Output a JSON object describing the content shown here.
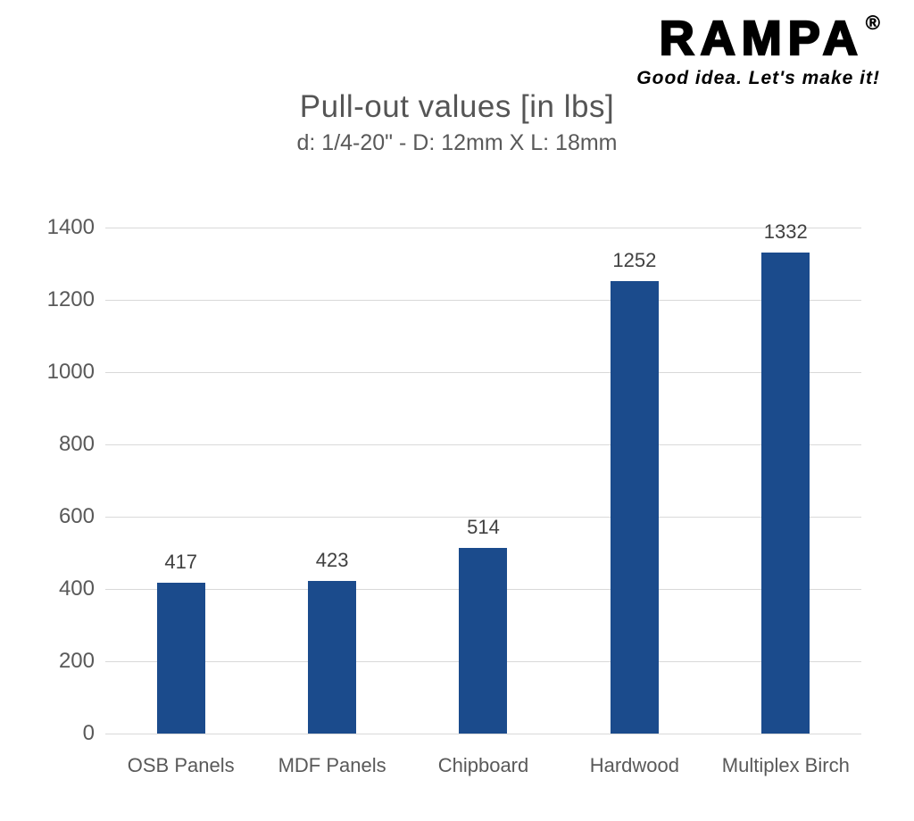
{
  "logo": {
    "brand": "RAMPA",
    "registered": "®",
    "tagline": "Good idea. Let's make it!"
  },
  "header": {
    "title": "Pull-out values [in lbs]",
    "subtitle": "d: 1/4-20\" - D: 12mm X L: 18mm"
  },
  "chart_data": {
    "type": "bar",
    "title": "Pull-out values [in lbs]",
    "subtitle": "d: 1/4-20\" - D: 12mm X L: 18mm",
    "categories": [
      "OSB Panels",
      "MDF Panels",
      "Chipboard",
      "Hardwood",
      "Multiplex Birch"
    ],
    "values": [
      417,
      423,
      514,
      1252,
      1332
    ],
    "data_labels": [
      "417",
      "423",
      "514",
      "1252",
      "1332"
    ],
    "xlabel": "",
    "ylabel": "",
    "ylim": [
      0,
      1400
    ],
    "yticks": [
      0,
      200,
      400,
      600,
      800,
      1000,
      1200,
      1400
    ],
    "grid": true,
    "legend": "none",
    "colors": {
      "bar": "#1b4b8c",
      "gridline": "#d9d9d9",
      "axis_text": "#595959",
      "data_label_text": "#404040",
      "title_text": "#555555",
      "background": "#ffffff"
    }
  }
}
